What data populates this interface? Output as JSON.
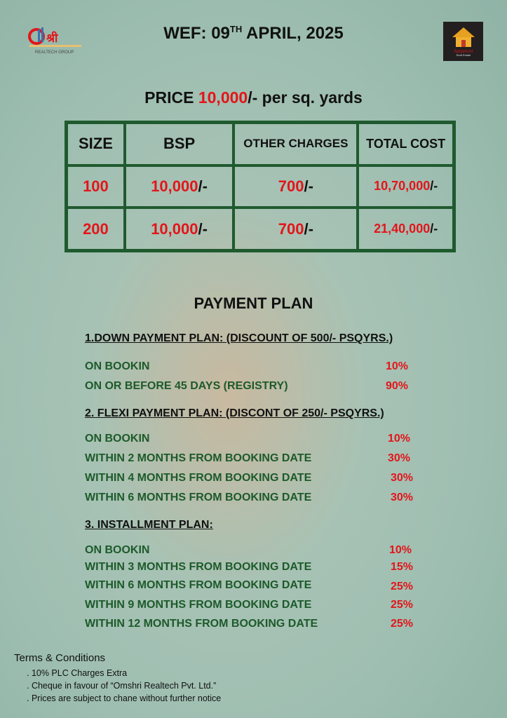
{
  "header": {
    "wef_prefix": "WEF: 09",
    "wef_sup": "TH",
    "wef_suffix": " APRIL, 2025",
    "logo_left": "ॐश्री REALTECH GROUP",
    "logo_right": "Sanjeevni Real Estate"
  },
  "price": {
    "prefix": "PRICE ",
    "value": "10,000",
    "suffix": "/- per sq. yards"
  },
  "table": {
    "headers": [
      "SIZE",
      "BSP",
      "OTHER CHARGES",
      "TOTAL COST"
    ],
    "rows": [
      {
        "size": "100",
        "bsp": "10,000",
        "other": "700",
        "total": "10,70,000"
      },
      {
        "size": "200",
        "bsp": "10,000",
        "other": "700",
        "total": "21,40,000"
      }
    ],
    "suffix": "/-"
  },
  "payment_plan": {
    "title": "PAYMENT PLAN",
    "plans": [
      {
        "title": "1.DOWN PAYMENT PLAN: (DISCOUNT OF 500/- PSQYRS.)",
        "items": [
          {
            "label": "ON BOOKIN",
            "pct": "10%"
          },
          {
            "label": "ON OR BEFORE 45 DAYS (REGISTRY)",
            "pct": "90%"
          }
        ]
      },
      {
        "title": "2. FLEXI PAYMENT PLAN: (DISCONT OF 250/- PSQYRS.)",
        "items": [
          {
            "label": "ON BOOKIN",
            "pct": "10%"
          },
          {
            "label": "WITHIN 2 MONTHS FROM BOOKING DATE",
            "pct": "30%"
          },
          {
            "label": "WITHIN 4 MONTHS FROM BOOKING DATE",
            "pct": "30%"
          },
          {
            "label": "WITHIN 6 MONTHS FROM BOOKING DATE",
            "pct": "30%"
          }
        ]
      },
      {
        "title": "3. INSTALLMENT PLAN:",
        "items": [
          {
            "label": "ON BOOKIN",
            "pct": "10%"
          },
          {
            "label": "WITHIN 3 MONTHS FROM BOOKING DATE",
            "pct": "15%"
          },
          {
            "label": "WITHIN 6 MONTHS FROM BOOKING DATE",
            "pct": "25%"
          },
          {
            "label": "WITHIN 9 MONTHS FROM BOOKING DATE",
            "pct": "25%"
          },
          {
            "label": "WITHIN 12 MONTHS FROM BOOKING DATE",
            "pct": "25%"
          }
        ]
      }
    ]
  },
  "terms": {
    "title": "Terms & Conditions",
    "items": [
      ". 10% PLC Charges Extra",
      ". Cheque in favour of “Omshri Realtech Pvt. Ltd.”",
      ". Prices are subject to chane without further notice"
    ]
  }
}
